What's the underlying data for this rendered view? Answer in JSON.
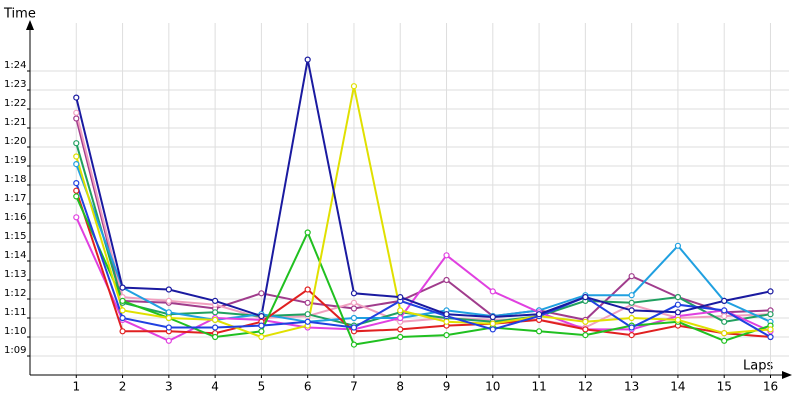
{
  "chart_data": {
    "type": "line",
    "y_label": "Time",
    "x_label": "Laps",
    "x": [
      1,
      2,
      3,
      4,
      5,
      6,
      7,
      8,
      9,
      10,
      11,
      12,
      13,
      14,
      15,
      16
    ],
    "xlim": [
      0,
      16.4
    ],
    "xticks": [
      1,
      2,
      3,
      4,
      5,
      6,
      7,
      8,
      9,
      10,
      11,
      12,
      13,
      14,
      15,
      16
    ],
    "ylim": [
      68,
      86
    ],
    "yticks": [
      {
        "value": 69,
        "label": "1:09"
      },
      {
        "value": 70,
        "label": "1:10"
      },
      {
        "value": 71,
        "label": "1:11"
      },
      {
        "value": 72,
        "label": "1:12"
      },
      {
        "value": 73,
        "label": "1:13"
      },
      {
        "value": 74,
        "label": "1:14"
      },
      {
        "value": 75,
        "label": "1:15"
      },
      {
        "value": 76,
        "label": "1:16"
      },
      {
        "value": 77,
        "label": "1:17"
      },
      {
        "value": 78,
        "label": "1:18"
      },
      {
        "value": 79,
        "label": "1:19"
      },
      {
        "value": 80,
        "label": "1:20"
      },
      {
        "value": 81,
        "label": "1:21"
      },
      {
        "value": 82,
        "label": "1:22"
      },
      {
        "value": 83,
        "label": "1:23"
      },
      {
        "value": 84,
        "label": "1:24"
      }
    ],
    "grid": true,
    "series": [
      {
        "color": "#a03c8c",
        "values": [
          81.5,
          71.9,
          71.8,
          71.5,
          72.3,
          71.8,
          71.5,
          71.9,
          73,
          71.1,
          71.4,
          70.9,
          73.2,
          72.1,
          71.3,
          71.4
        ]
      },
      {
        "color": "#f0a0c0",
        "values": [
          81.8,
          72.1,
          71.9,
          71.7,
          71,
          71.1,
          71.8,
          70.8,
          71,
          70.9,
          70.9,
          70.5,
          71.7,
          71,
          71.1,
          71.2
        ]
      },
      {
        "color": "#20a060",
        "values": [
          80.2,
          71.8,
          71.2,
          71.3,
          71.1,
          71.2,
          70.6,
          71.3,
          71,
          70.8,
          71.1,
          71.9,
          71.8,
          72.1,
          70.8,
          71.2
        ]
      },
      {
        "color": "#20a0e0",
        "values": [
          79.1,
          72.6,
          71.3,
          70.9,
          71.2,
          70.8,
          71,
          71,
          71.4,
          71.1,
          71.4,
          72.2,
          72.2,
          74.8,
          71.9,
          70.8
        ]
      },
      {
        "color": "#e040e0",
        "values": [
          76.3,
          70.9,
          69.8,
          71,
          70.9,
          70.5,
          70.4,
          71,
          74.3,
          72.4,
          71.3,
          70.4,
          70.4,
          71.1,
          71.4,
          70.3
        ]
      },
      {
        "color": "#e02020",
        "values": [
          77.7,
          70.3,
          70.3,
          70.2,
          70.8,
          72.5,
          70.3,
          70.4,
          70.6,
          70.7,
          70.9,
          70.4,
          70.1,
          70.6,
          70.2,
          70
        ]
      },
      {
        "color": "#20c020",
        "values": [
          77.4,
          71.9,
          71,
          70,
          70.3,
          75.5,
          69.6,
          70,
          70.1,
          70.5,
          70.3,
          70.1,
          70.6,
          70.8,
          69.8,
          70.6
        ]
      },
      {
        "color": "#e0e000",
        "values": [
          79.5,
          71.4,
          71,
          70.9,
          70,
          70.6,
          83.2,
          71.4,
          70.8,
          70.7,
          71.1,
          70.8,
          71,
          70.9,
          70.2,
          70.4
        ]
      },
      {
        "color": "#2040e0",
        "values": [
          78.1,
          71,
          70.5,
          70.5,
          70.6,
          70.8,
          70.5,
          71.9,
          71.1,
          70.4,
          71.1,
          72.1,
          70.5,
          71.7,
          71.4,
          70
        ]
      },
      {
        "color": "#1a1aa0",
        "values": [
          82.6,
          72.6,
          72.5,
          71.9,
          71.1,
          84.6,
          72.3,
          72.1,
          71.2,
          71.05,
          71.2,
          72.1,
          71.4,
          71.3,
          71.9,
          72.4
        ]
      }
    ]
  }
}
